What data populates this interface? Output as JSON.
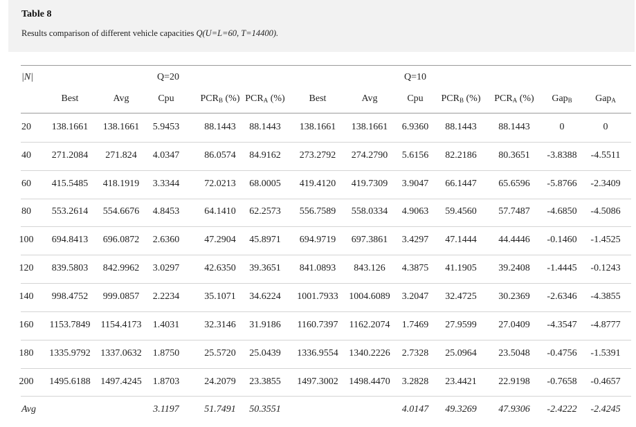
{
  "table": {
    "title": "Table 8",
    "caption_prefix": "Results comparison of different vehicle capacities ",
    "caption_q": "Q",
    "caption_params": "(U=L=60, T=14400).",
    "n_header": "|N|",
    "group_headers": [
      "Q=20",
      "Q=10"
    ],
    "columns": [
      "Best",
      "Avg",
      "Cpu",
      "PCRB (%)",
      "PCRA (%)",
      "Best",
      "Avg",
      "Cpu",
      "PCRB (%)",
      "PCRA (%)",
      "GapB",
      "GapA"
    ],
    "rows": [
      [
        "20",
        "138.1661",
        "138.1661",
        "5.9453",
        "88.1443",
        "88.1443",
        "138.1661",
        "138.1661",
        "6.9360",
        "88.1443",
        "88.1443",
        "0",
        "0"
      ],
      [
        "40",
        "271.2084",
        "271.824",
        "4.0347",
        "86.0574",
        "84.9162",
        "273.2792",
        "274.2790",
        "5.6156",
        "82.2186",
        "80.3651",
        "-3.8388",
        "-4.5511"
      ],
      [
        "60",
        "415.5485",
        "418.1919",
        "3.3344",
        "72.0213",
        "68.0005",
        "419.4120",
        "419.7309",
        "3.9047",
        "66.1447",
        "65.6596",
        "-5.8766",
        "-2.3409"
      ],
      [
        "80",
        "553.2614",
        "554.6676",
        "4.8453",
        "64.1410",
        "62.2573",
        "556.7589",
        "558.0334",
        "4.9063",
        "59.4560",
        "57.7487",
        "-4.6850",
        "-4.5086"
      ],
      [
        "100",
        "694.8413",
        "696.0872",
        "2.6360",
        "47.2904",
        "45.8971",
        "694.9719",
        "697.3861",
        "3.4297",
        "47.1444",
        "44.4446",
        "-0.1460",
        "-1.4525"
      ],
      [
        "120",
        "839.5803",
        "842.9962",
        "3.0297",
        "42.6350",
        "39.3651",
        "841.0893",
        "843.126",
        "4.3875",
        "41.1905",
        "39.2408",
        "-1.4445",
        "-0.1243"
      ],
      [
        "140",
        "998.4752",
        "999.0857",
        "2.2234",
        "35.1071",
        "34.6224",
        "1001.7933",
        "1004.6089",
        "3.2047",
        "32.4725",
        "30.2369",
        "-2.6346",
        "-4.3855"
      ],
      [
        "160",
        "1153.7849",
        "1154.4173",
        "1.4031",
        "32.3146",
        "31.9186",
        "1160.7397",
        "1162.2074",
        "1.7469",
        "27.9599",
        "27.0409",
        "-4.3547",
        "-4.8777"
      ],
      [
        "180",
        "1335.9792",
        "1337.0632",
        "1.8750",
        "25.5720",
        "25.0439",
        "1336.9554",
        "1340.2226",
        "2.7328",
        "25.0964",
        "23.5048",
        "-0.4756",
        "-1.5391"
      ],
      [
        "200",
        "1495.6188",
        "1497.4245",
        "1.8703",
        "24.2079",
        "23.3855",
        "1497.3002",
        "1498.4470",
        "3.2828",
        "23.4421",
        "22.9198",
        "-0.7658",
        "-0.4657"
      ]
    ],
    "avg_row": [
      "Avg",
      "",
      "",
      "3.1197",
      "51.7491",
      "50.3551",
      "",
      "",
      "4.0147",
      "49.3269",
      "47.9306",
      "-2.4222",
      "-2.4245"
    ]
  }
}
